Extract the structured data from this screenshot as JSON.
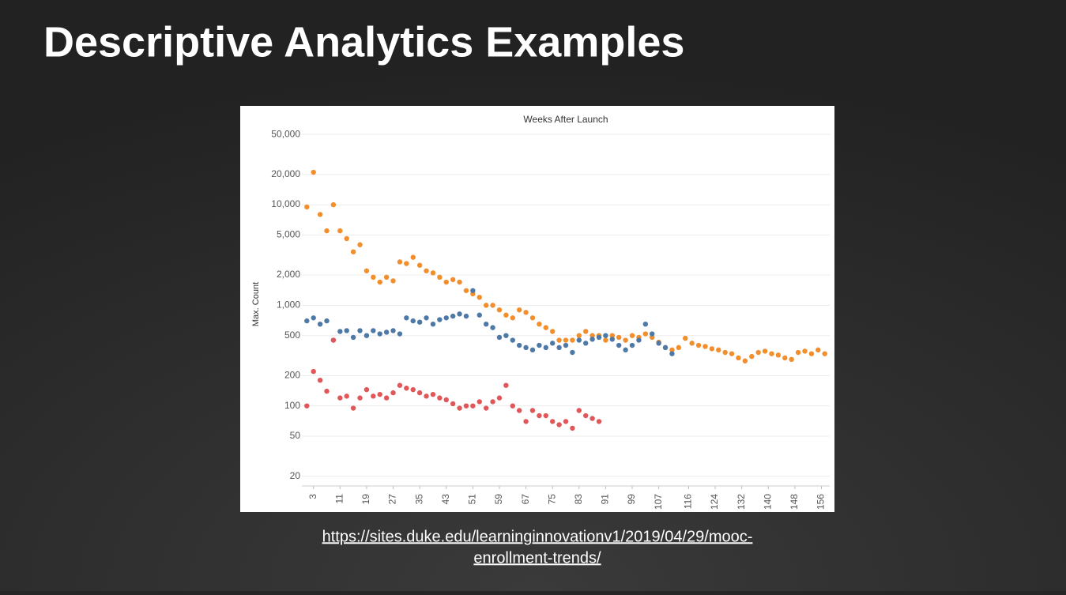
{
  "slide": {
    "title": "Descriptive Analytics Examples",
    "link": [
      "https://sites.duke.edu/learninginnovationv1/2019/04/29/mooc-",
      "enrollment-trends/"
    ]
  },
  "chart_data": {
    "type": "scatter",
    "title": "Weeks After Launch",
    "y_label": "Max. Count",
    "yscale": "log",
    "grid": true,
    "xlim": [
      -0.5,
      158.5
    ],
    "ylim": [
      16,
      60000
    ],
    "xticks": [
      3,
      11,
      19,
      27,
      35,
      43,
      51,
      59,
      67,
      75,
      83,
      91,
      99,
      107,
      116,
      124,
      132,
      140,
      148,
      156
    ],
    "yticks": [
      20,
      50,
      100,
      200,
      500,
      {
        "value": 1000,
        "label": "1,000"
      },
      {
        "value": 2000,
        "label": "2,000"
      },
      {
        "value": 5000,
        "label": "5,000"
      },
      {
        "value": 10000,
        "label": "10,000"
      },
      {
        "value": 20000,
        "label": "20,000"
      },
      {
        "value": 50000,
        "label": "50,000"
      }
    ],
    "x": [
      1,
      3,
      5,
      7,
      9,
      11,
      13,
      15,
      17,
      19,
      21,
      23,
      25,
      27,
      29,
      31,
      33,
      35,
      37,
      39,
      41,
      43,
      45,
      47,
      49,
      51,
      53,
      55,
      57,
      59,
      61,
      63,
      65,
      67,
      69,
      71,
      73,
      75,
      77,
      79,
      81,
      83,
      85,
      87,
      89,
      91,
      93,
      95,
      97,
      99,
      101,
      103,
      105,
      107,
      109,
      111,
      113,
      115,
      117,
      119,
      121,
      123,
      125,
      127,
      129,
      131,
      133,
      135,
      137,
      139,
      141,
      143,
      145,
      147,
      149,
      151,
      153,
      155,
      157
    ],
    "series": [
      {
        "color": "#f28e2b",
        "values": [
          9500,
          21000,
          8000,
          5500,
          10000,
          5500,
          4600,
          3400,
          4000,
          2200,
          1900,
          1700,
          1900,
          1750,
          2700,
          2600,
          3000,
          2500,
          2200,
          2100,
          1900,
          1700,
          1800,
          1700,
          1400,
          1300,
          1200,
          1000,
          1000,
          900,
          800,
          750,
          900,
          850,
          750,
          650,
          600,
          550,
          450,
          450,
          450,
          500,
          550,
          500,
          500,
          450,
          500,
          480,
          450,
          500,
          480,
          520,
          480,
          430,
          380,
          360,
          380,
          470,
          420,
          400,
          390,
          370,
          360,
          340,
          330,
          300,
          280,
          310,
          340,
          350,
          330,
          320,
          300,
          290,
          340,
          350,
          330,
          360,
          330
        ]
      },
      {
        "color": "#4e79a7",
        "values": [
          700,
          750,
          650,
          700,
          450,
          550,
          560,
          480,
          560,
          500,
          560,
          520,
          540,
          560,
          520,
          750,
          700,
          680,
          750,
          650,
          720,
          750,
          780,
          820,
          780,
          1400,
          800,
          650,
          600,
          480,
          500,
          450,
          400,
          380,
          360,
          400,
          380,
          420,
          380,
          400,
          340,
          450,
          420,
          460,
          480,
          500,
          460,
          400,
          360,
          400,
          450,
          650,
          520,
          420,
          380,
          330,
          null,
          null,
          null,
          null,
          null,
          null,
          null,
          null,
          null,
          null,
          null,
          null,
          null,
          null,
          null,
          null,
          null,
          null,
          null,
          null,
          null,
          null,
          null
        ]
      },
      {
        "color": "#e15759",
        "values": [
          100,
          220,
          180,
          140,
          450,
          120,
          125,
          95,
          120,
          145,
          125,
          130,
          120,
          135,
          160,
          150,
          145,
          135,
          125,
          130,
          120,
          115,
          105,
          95,
          100,
          100,
          110,
          95,
          110,
          120,
          160,
          100,
          90,
          70,
          90,
          80,
          80,
          70,
          65,
          70,
          60,
          90,
          80,
          75,
          70,
          null,
          null,
          null,
          null,
          null,
          null,
          null,
          null,
          null,
          null,
          null,
          null,
          null,
          null,
          null,
          null,
          null,
          null,
          null,
          null,
          null,
          null,
          null,
          null,
          null,
          null,
          null,
          null,
          null,
          null,
          null,
          null,
          null,
          null
        ]
      }
    ]
  }
}
